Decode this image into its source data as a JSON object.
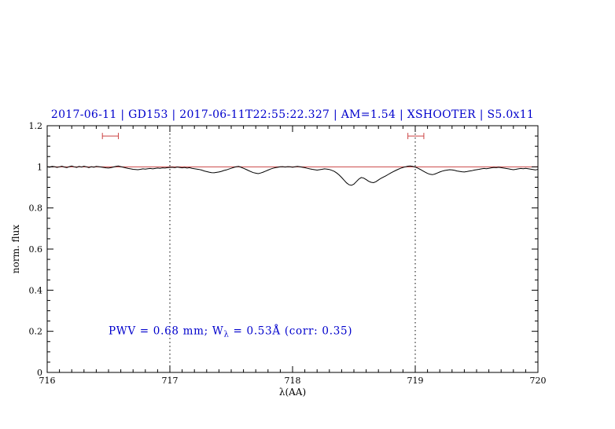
{
  "page": {
    "background": "#ffffff"
  },
  "chart_data": {
    "type": "line",
    "title": "2017-06-11 | GD153 | 2017-06-11T22:55:22.327 | AM=1.54 | XSHOOTER | S5.0x11",
    "xlabel": "λ(AA)",
    "ylabel": "norm. flux",
    "xlim": [
      716,
      720
    ],
    "ylim": [
      0,
      1.2
    ],
    "x_ticks": [
      716,
      717,
      718,
      719,
      720
    ],
    "x_tick_labels": [
      "716",
      "717",
      "718",
      "719",
      "720"
    ],
    "x_minor_step": 0.1,
    "y_ticks": [
      0,
      0.2,
      0.4,
      0.6,
      0.8,
      1,
      1.2
    ],
    "y_tick_labels": [
      "0",
      "0.2",
      "0.4",
      "0.6",
      "0.8",
      "1",
      "1.2"
    ],
    "y_minor_step": 0.05,
    "grid": false,
    "legend": "none",
    "colors": {
      "title": "#0000cc",
      "annotation": "#0000cc",
      "spectrum": "#000000",
      "continuum": "#cc4444",
      "marker": "#cc4444",
      "vline": "#000000",
      "frame": "#000000"
    },
    "vlines": [
      {
        "x": 717
      },
      {
        "x": 719
      }
    ],
    "markers": [
      {
        "x1": 716.45,
        "x2": 716.58,
        "y": 1.15
      },
      {
        "x1": 718.94,
        "x2": 719.07,
        "y": 1.15
      }
    ],
    "annotation": {
      "full_text": "PWV = 0.68 mm; Wλ = 0.53Å (corr: 0.35)",
      "text_before_sub": "PWV = 0.68 mm; W",
      "subscript": "λ",
      "text_after_sub": " = 0.53Å (corr: 0.35)",
      "x": 716.5,
      "y": 0.2
    },
    "series": [
      {
        "name": "observed-spectrum",
        "color": "#000000",
        "x_start": 716,
        "x_step": 0.02,
        "y": [
          1.0,
          0.998,
          1.002,
          1.001,
          0.997,
          1.0,
          1.003,
          0.999,
          0.996,
          1.001,
          1.004,
          1.0,
          0.997,
          1.002,
          0.999,
          1.003,
          1.0,
          0.996,
          1.001,
          0.998,
          1.002,
          1.001,
          0.999,
          0.997,
          0.995,
          0.994,
          0.996,
          0.999,
          1.002,
          1.004,
          1.001,
          0.998,
          0.995,
          0.992,
          0.99,
          0.988,
          0.987,
          0.986,
          0.988,
          0.99,
          0.989,
          0.991,
          0.992,
          0.99,
          0.992,
          0.994,
          0.993,
          0.995,
          0.994,
          0.996,
          0.997,
          0.998,
          0.996,
          0.999,
          0.997,
          0.995,
          0.997,
          0.994,
          0.996,
          0.993,
          0.991,
          0.989,
          0.987,
          0.984,
          0.98,
          0.977,
          0.974,
          0.972,
          0.971,
          0.973,
          0.975,
          0.978,
          0.982,
          0.985,
          0.989,
          0.993,
          0.997,
          1.0,
          1.002,
          0.998,
          0.993,
          0.988,
          0.982,
          0.977,
          0.972,
          0.969,
          0.967,
          0.97,
          0.974,
          0.979,
          0.984,
          0.989,
          0.993,
          0.996,
          0.998,
          1.0,
          1.001,
          0.999,
          1.001,
          1.0,
          0.998,
          1.0,
          1.002,
          1.0,
          0.998,
          0.996,
          0.993,
          0.99,
          0.988,
          0.986,
          0.984,
          0.986,
          0.988,
          0.99,
          0.989,
          0.987,
          0.983,
          0.978,
          0.97,
          0.96,
          0.948,
          0.935,
          0.922,
          0.913,
          0.91,
          0.916,
          0.928,
          0.94,
          0.948,
          0.945,
          0.938,
          0.93,
          0.925,
          0.923,
          0.928,
          0.936,
          0.944,
          0.95,
          0.956,
          0.963,
          0.97,
          0.976,
          0.982,
          0.988,
          0.993,
          0.997,
          1.0,
          1.003,
          1.004,
          1.002,
          0.999,
          0.994,
          0.988,
          0.981,
          0.974,
          0.968,
          0.964,
          0.962,
          0.965,
          0.97,
          0.975,
          0.979,
          0.982,
          0.984,
          0.986,
          0.985,
          0.983,
          0.98,
          0.978,
          0.976,
          0.975,
          0.977,
          0.979,
          0.981,
          0.984,
          0.986,
          0.988,
          0.99,
          0.992,
          0.991,
          0.993,
          0.995,
          0.997,
          0.996,
          0.998,
          0.996,
          0.994,
          0.992,
          0.99,
          0.988,
          0.986,
          0.988,
          0.99,
          0.992,
          0.991,
          0.993,
          0.991,
          0.989,
          0.987,
          0.985,
          0.988
        ]
      },
      {
        "name": "continuum-fit",
        "color": "#cc4444",
        "y_value": 1.0
      }
    ]
  }
}
